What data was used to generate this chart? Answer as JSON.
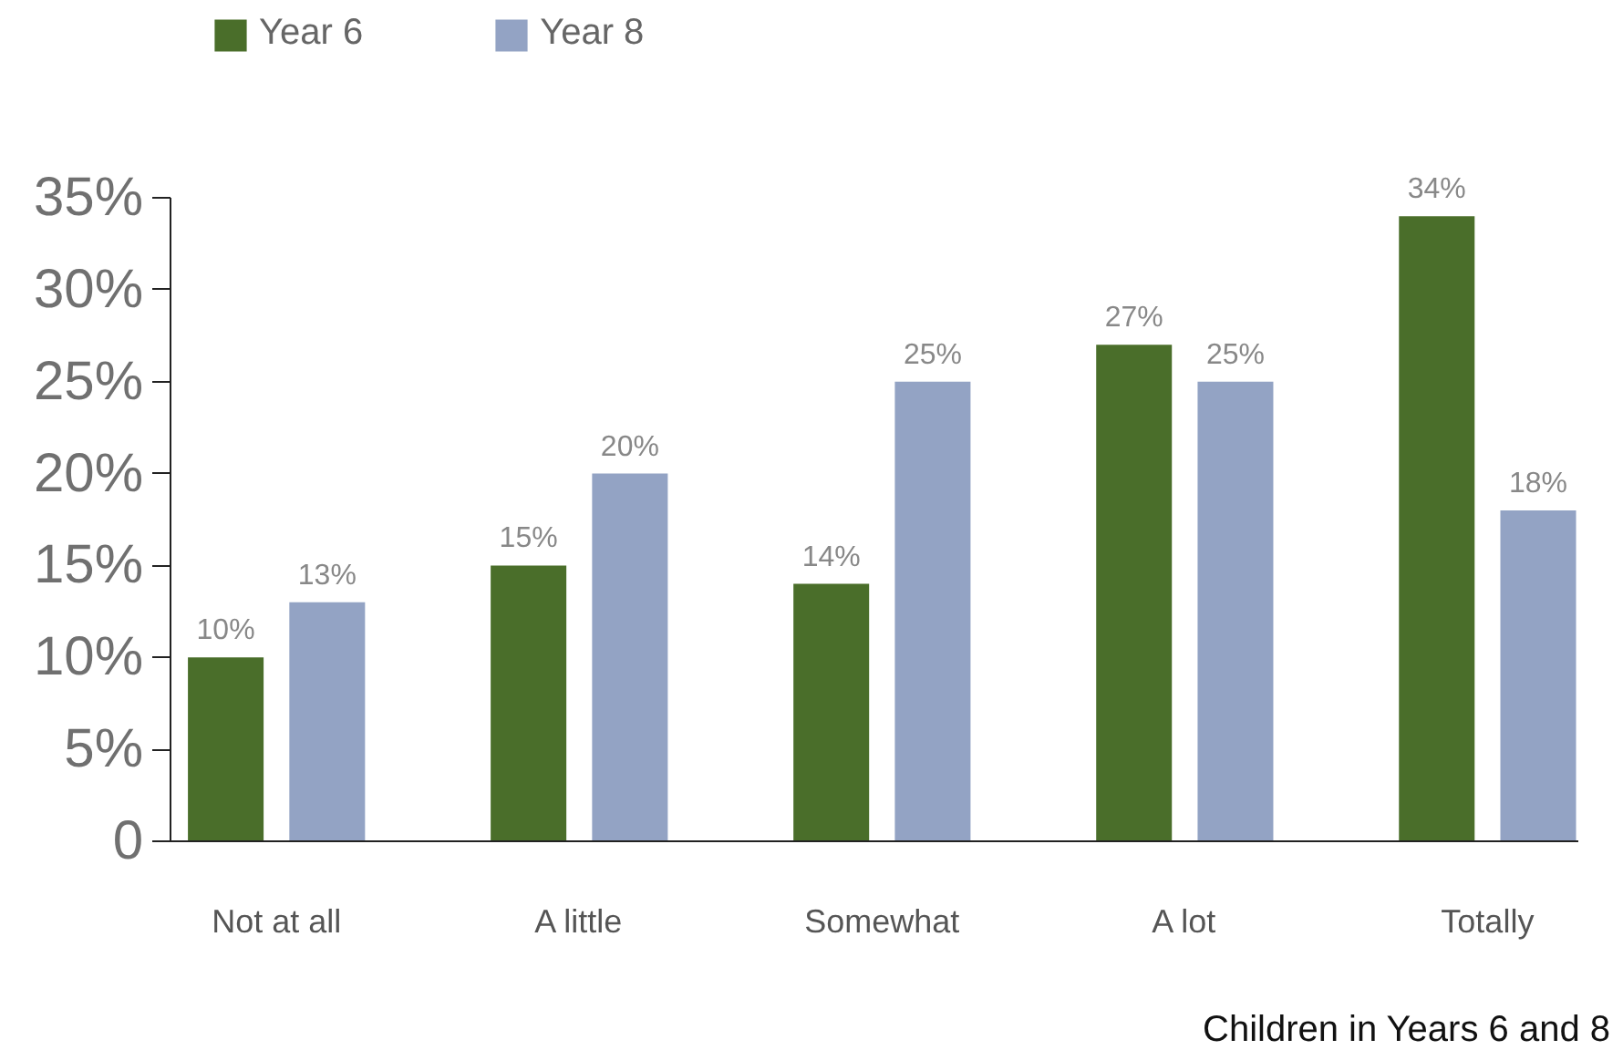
{
  "chart_data": {
    "type": "bar",
    "categories": [
      "Not at all",
      "A little",
      "Somewhat",
      "A lot",
      "Totally"
    ],
    "series": [
      {
        "name": "Year 6",
        "color": "#4a6e2a",
        "values": [
          10,
          15,
          14,
          27,
          34
        ],
        "value_labels": [
          "10%",
          "15%",
          "14%",
          "27%",
          "34%"
        ]
      },
      {
        "name": "Year 8",
        "color": "#93a3c4",
        "values": [
          13,
          20,
          25,
          25,
          18
        ],
        "value_labels": [
          "13%",
          "20%",
          "25%",
          "25%",
          "18%"
        ]
      }
    ],
    "ylim": [
      0,
      35
    ],
    "yticks": [
      {
        "value": 0,
        "label": "0"
      },
      {
        "value": 5,
        "label": "5%"
      },
      {
        "value": 10,
        "label": "10%"
      },
      {
        "value": 15,
        "label": "15%"
      },
      {
        "value": 20,
        "label": "20%"
      },
      {
        "value": 25,
        "label": "25%"
      },
      {
        "value": 30,
        "label": "30%"
      },
      {
        "value": 35,
        "label": "35%"
      }
    ],
    "grid": false,
    "legend": "top",
    "annotations": [
      "Children in Years 6 and 8"
    ]
  }
}
